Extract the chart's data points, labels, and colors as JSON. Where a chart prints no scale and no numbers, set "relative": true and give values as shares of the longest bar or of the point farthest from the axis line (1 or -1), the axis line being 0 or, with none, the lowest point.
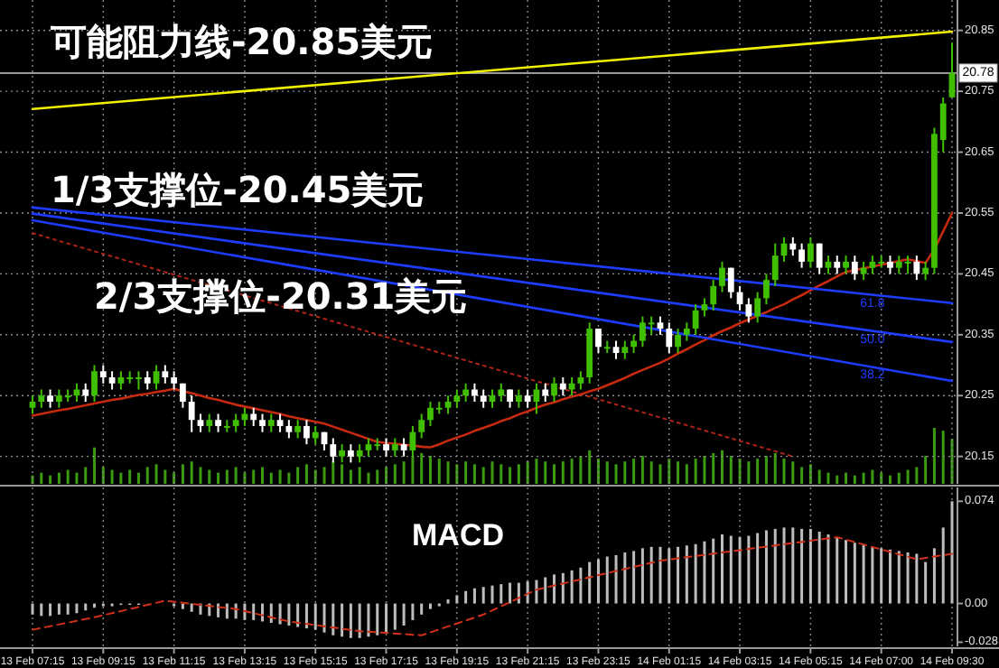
{
  "chart_data": [
    {
      "type": "candlestick",
      "categories": [
        null,
        null,
        null,
        null,
        null,
        null,
        null,
        null,
        null,
        null,
        null,
        null,
        null,
        null,
        null,
        null,
        null,
        null,
        null,
        null,
        null,
        null,
        null,
        null,
        null,
        null,
        null,
        null,
        null,
        null,
        null,
        null,
        null,
        null,
        null,
        null,
        null,
        null,
        null,
        null,
        null,
        null,
        null,
        null,
        null,
        null,
        null,
        null,
        null,
        null,
        null,
        null,
        null,
        null,
        null,
        null,
        null,
        null,
        null,
        null,
        null,
        null,
        null,
        null,
        null,
        null,
        null,
        null,
        null,
        null,
        null,
        null,
        null,
        null,
        null,
        null,
        null,
        null,
        null,
        null,
        null,
        null,
        null,
        null,
        null,
        null,
        null,
        null,
        null,
        null,
        null,
        null,
        null,
        null,
        null,
        null,
        null,
        null,
        null,
        null,
        null,
        null,
        null,
        null,
        null
      ],
      "ohlc": [
        [
          20.23,
          20.25,
          20.22,
          20.24
        ],
        [
          20.24,
          20.26,
          20.23,
          20.25
        ],
        [
          20.25,
          20.26,
          20.23,
          20.24
        ],
        [
          20.24,
          20.26,
          20.23,
          20.25
        ],
        [
          20.25,
          20.26,
          20.24,
          20.25
        ],
        [
          20.25,
          20.27,
          20.24,
          20.26
        ],
        [
          20.26,
          20.27,
          20.24,
          20.25
        ],
        [
          20.25,
          20.3,
          20.24,
          20.29
        ],
        [
          20.29,
          20.3,
          20.27,
          20.28
        ],
        [
          20.28,
          20.29,
          20.26,
          20.27
        ],
        [
          20.27,
          20.29,
          20.26,
          20.28
        ],
        [
          20.28,
          20.29,
          20.27,
          20.28
        ],
        [
          20.28,
          20.29,
          20.26,
          20.28
        ],
        [
          20.28,
          20.29,
          20.26,
          20.27
        ],
        [
          20.27,
          20.3,
          20.26,
          20.29
        ],
        [
          20.29,
          20.3,
          20.27,
          20.28
        ],
        [
          20.28,
          20.29,
          20.26,
          20.27
        ],
        [
          20.27,
          20.27,
          20.23,
          20.24
        ],
        [
          20.24,
          20.25,
          20.19,
          20.21
        ],
        [
          20.21,
          20.22,
          20.19,
          20.2
        ],
        [
          20.2,
          20.22,
          20.19,
          20.21
        ],
        [
          20.21,
          20.22,
          20.19,
          20.2
        ],
        [
          20.2,
          20.21,
          20.19,
          20.2
        ],
        [
          20.2,
          20.22,
          20.19,
          20.21
        ],
        [
          20.21,
          20.23,
          20.2,
          20.22
        ],
        [
          20.22,
          20.23,
          20.2,
          20.21
        ],
        [
          20.21,
          20.22,
          20.19,
          20.2
        ],
        [
          20.2,
          20.22,
          20.19,
          20.21
        ],
        [
          20.21,
          20.22,
          20.19,
          20.2
        ],
        [
          20.2,
          20.21,
          20.18,
          20.19
        ],
        [
          20.19,
          20.21,
          20.18,
          20.2
        ],
        [
          20.2,
          20.21,
          20.17,
          20.18
        ],
        [
          20.18,
          20.2,
          20.17,
          20.19
        ],
        [
          20.19,
          20.19,
          20.16,
          20.17
        ],
        [
          20.17,
          20.18,
          20.14,
          20.15
        ],
        [
          20.15,
          20.17,
          20.14,
          20.16
        ],
        [
          20.16,
          20.17,
          20.14,
          20.15
        ],
        [
          20.15,
          20.17,
          20.14,
          20.16
        ],
        [
          20.16,
          20.18,
          20.15,
          20.17
        ],
        [
          20.17,
          20.18,
          20.16,
          20.17
        ],
        [
          20.17,
          20.18,
          20.15,
          20.16
        ],
        [
          20.16,
          20.18,
          20.15,
          20.17
        ],
        [
          20.17,
          20.18,
          20.15,
          20.16
        ],
        [
          20.16,
          20.2,
          20.15,
          20.19
        ],
        [
          20.19,
          20.22,
          20.18,
          20.21
        ],
        [
          20.21,
          20.24,
          20.2,
          20.23
        ],
        [
          20.23,
          20.24,
          20.22,
          20.23
        ],
        [
          20.23,
          20.25,
          20.22,
          20.24
        ],
        [
          20.24,
          20.26,
          20.23,
          20.25
        ],
        [
          20.25,
          20.27,
          20.24,
          20.26
        ],
        [
          20.26,
          20.27,
          20.24,
          20.25
        ],
        [
          20.25,
          20.26,
          20.23,
          20.24
        ],
        [
          20.24,
          20.26,
          20.23,
          20.25
        ],
        [
          20.25,
          20.27,
          20.24,
          20.26
        ],
        [
          20.26,
          20.26,
          20.23,
          20.24
        ],
        [
          20.24,
          20.26,
          20.23,
          20.25
        ],
        [
          20.25,
          20.26,
          20.23,
          20.24
        ],
        [
          20.24,
          20.27,
          20.22,
          20.26
        ],
        [
          20.26,
          20.27,
          20.24,
          20.25
        ],
        [
          20.25,
          20.28,
          20.24,
          20.27
        ],
        [
          20.27,
          20.28,
          20.25,
          20.26
        ],
        [
          20.26,
          20.28,
          20.25,
          20.27
        ],
        [
          20.27,
          20.29,
          20.26,
          20.28
        ],
        [
          20.28,
          20.37,
          20.27,
          20.36
        ],
        [
          20.36,
          20.36,
          20.32,
          20.33
        ],
        [
          20.33,
          20.34,
          20.32,
          20.33
        ],
        [
          20.33,
          20.34,
          20.31,
          20.32
        ],
        [
          20.32,
          20.34,
          20.31,
          20.33
        ],
        [
          20.33,
          20.35,
          20.32,
          20.34
        ],
        [
          20.34,
          20.38,
          20.33,
          20.37
        ],
        [
          20.37,
          20.38,
          20.35,
          20.37
        ],
        [
          20.37,
          20.38,
          20.35,
          20.36
        ],
        [
          20.36,
          20.37,
          20.32,
          20.33
        ],
        [
          20.33,
          20.36,
          20.32,
          20.35
        ],
        [
          20.35,
          20.37,
          20.34,
          20.36
        ],
        [
          20.36,
          20.4,
          20.35,
          20.39
        ],
        [
          20.39,
          20.41,
          20.38,
          20.4
        ],
        [
          20.4,
          20.44,
          20.39,
          20.43
        ],
        [
          20.43,
          20.47,
          20.42,
          20.46
        ],
        [
          20.46,
          20.46,
          20.41,
          20.42
        ],
        [
          20.42,
          20.43,
          20.39,
          20.4
        ],
        [
          20.4,
          20.41,
          20.37,
          20.38
        ],
        [
          20.38,
          20.42,
          20.37,
          20.41
        ],
        [
          20.41,
          20.45,
          20.4,
          20.44
        ],
        [
          20.44,
          20.5,
          20.43,
          20.48
        ],
        [
          20.48,
          20.51,
          20.47,
          20.5
        ],
        [
          20.5,
          20.51,
          20.48,
          20.49
        ],
        [
          20.49,
          20.5,
          20.46,
          20.47
        ],
        [
          20.47,
          20.51,
          20.46,
          20.5
        ],
        [
          20.5,
          20.5,
          20.45,
          20.46
        ],
        [
          20.46,
          20.48,
          20.45,
          20.47
        ],
        [
          20.47,
          20.48,
          20.45,
          20.46
        ],
        [
          20.46,
          20.48,
          20.45,
          20.47
        ],
        [
          20.47,
          20.48,
          20.44,
          20.45
        ],
        [
          20.45,
          20.47,
          20.44,
          20.46
        ],
        [
          20.46,
          20.48,
          20.45,
          20.47
        ],
        [
          20.47,
          20.48,
          20.46,
          20.47
        ],
        [
          20.47,
          20.48,
          20.45,
          20.46
        ],
        [
          20.46,
          20.48,
          20.45,
          20.47
        ],
        [
          20.47,
          20.48,
          20.45,
          20.47
        ],
        [
          20.47,
          20.48,
          20.44,
          20.45
        ],
        [
          20.45,
          20.47,
          20.44,
          20.46
        ],
        [
          20.46,
          20.69,
          20.45,
          20.68
        ],
        [
          20.67,
          20.74,
          20.65,
          20.73
        ],
        [
          20.74,
          20.83,
          20.74,
          20.78
        ]
      ],
      "colors": [
        "#3fbf00",
        "#3fbf00",
        "#ffffff",
        "#3fbf00",
        "#3fbf00",
        "#3fbf00",
        "#ffffff",
        "#3fbf00",
        "#ffffff",
        "#ffffff",
        "#3fbf00",
        "#3fbf00",
        "#3fbf00",
        "#ffffff",
        "#3fbf00",
        "#ffffff",
        "#ffffff",
        "#ffffff",
        "#ffffff",
        "#ffffff",
        "#3fbf00",
        "#ffffff",
        "#3fbf00",
        "#3fbf00",
        "#3fbf00",
        "#ffffff",
        "#ffffff",
        "#3fbf00",
        "#ffffff",
        "#ffffff",
        "#3fbf00",
        "#ffffff",
        "#3fbf00",
        "#ffffff",
        "#ffffff",
        "#3fbf00",
        "#ffffff",
        "#3fbf00",
        "#3fbf00",
        "#3fbf00",
        "#ffffff",
        "#3fbf00",
        "#ffffff",
        "#3fbf00",
        "#3fbf00",
        "#3fbf00",
        "#3fbf00",
        "#3fbf00",
        "#3fbf00",
        "#3fbf00",
        "#ffffff",
        "#ffffff",
        "#3fbf00",
        "#3fbf00",
        "#ffffff",
        "#3fbf00",
        "#ffffff",
        "#3fbf00",
        "#ffffff",
        "#3fbf00",
        "#ffffff",
        "#3fbf00",
        "#3fbf00",
        "#3fbf00",
        "#ffffff",
        "#3fbf00",
        "#ffffff",
        "#3fbf00",
        "#3fbf00",
        "#3fbf00",
        "#3fbf00",
        "#ffffff",
        "#ffffff",
        "#3fbf00",
        "#3fbf00",
        "#3fbf00",
        "#3fbf00",
        "#3fbf00",
        "#3fbf00",
        "#ffffff",
        "#ffffff",
        "#ffffff",
        "#3fbf00",
        "#3fbf00",
        "#3fbf00",
        "#3fbf00",
        "#ffffff",
        "#ffffff",
        "#3fbf00",
        "#ffffff",
        "#3fbf00",
        "#ffffff",
        "#3fbf00",
        "#ffffff",
        "#3fbf00",
        "#3fbf00",
        "#3fbf00",
        "#ffffff",
        "#3fbf00",
        "#3fbf00",
        "#ffffff",
        "#3fbf00",
        "#3fbf00",
        "#3fbf00",
        "#3fbf00"
      ],
      "series": [
        {
          "type": "line",
          "color": "#b02418",
          "line_style": "dotted",
          "values": [
            20.517,
            null,
            null,
            null,
            null,
            null,
            null,
            null,
            null,
            null,
            null,
            null,
            null,
            null,
            null,
            null,
            null,
            null,
            null,
            null,
            null,
            null,
            null,
            null,
            null,
            null,
            null,
            null,
            null,
            null,
            null,
            null,
            null,
            null,
            null,
            null,
            null,
            null,
            null,
            null,
            null,
            null,
            null,
            null,
            null,
            null,
            null,
            null,
            null,
            null,
            null,
            null,
            null,
            null,
            null,
            null,
            null,
            null,
            null,
            null,
            null,
            null,
            null,
            null,
            null,
            null,
            null,
            null,
            null,
            null,
            null,
            null,
            null,
            null,
            null,
            null,
            null,
            null,
            null,
            null,
            null,
            null,
            null,
            null,
            null,
            null,
            20.15,
            null,
            null,
            null,
            null,
            null,
            null,
            null,
            null,
            null,
            null,
            null,
            null,
            null,
            null,
            null,
            null,
            null,
            null
          ]
        },
        {
          "type": "line",
          "color": "#c82a10",
          "values": [
            20.217,
            20.22,
            20.223,
            20.226,
            20.228,
            20.231,
            20.234,
            20.237,
            20.24,
            20.243,
            20.245,
            20.248,
            20.251,
            20.253,
            20.256,
            20.258,
            20.261,
            20.257,
            20.254,
            20.25,
            20.246,
            20.243,
            20.239,
            20.235,
            20.232,
            20.229,
            20.226,
            20.223,
            20.22,
            20.216,
            20.213,
            20.21,
            20.207,
            20.204,
            20.199,
            20.194,
            20.189,
            20.184,
            20.179,
            20.174,
            20.172,
            20.171,
            20.169,
            20.168,
            20.166,
            20.165,
            20.17,
            20.176,
            20.181,
            20.186,
            20.192,
            20.197,
            20.202,
            20.208,
            20.213,
            20.219,
            20.224,
            20.23,
            20.235,
            20.239,
            20.244,
            20.248,
            20.252,
            20.257,
            20.261,
            20.267,
            20.273,
            20.279,
            20.286,
            20.292,
            20.298,
            20.304,
            20.311,
            20.319,
            20.326,
            20.334,
            20.341,
            20.349,
            20.356,
            20.362,
            20.369,
            20.375,
            20.381,
            20.387,
            20.394,
            20.4,
            20.408,
            20.415,
            20.423,
            20.431,
            20.438,
            20.446,
            20.453,
            20.456,
            20.459,
            20.462,
            20.465,
            20.468,
            20.471,
            20.474,
            20.471,
            20.468,
            20.49,
            20.52,
            20.55
          ]
        },
        {
          "type": "line",
          "color": "#f0f000",
          "values": [
            20.721,
            null,
            null,
            null,
            null,
            null,
            null,
            null,
            null,
            null,
            null,
            null,
            null,
            null,
            null,
            null,
            null,
            null,
            null,
            null,
            null,
            null,
            null,
            null,
            null,
            null,
            null,
            null,
            null,
            null,
            null,
            null,
            null,
            null,
            null,
            null,
            null,
            null,
            null,
            null,
            null,
            null,
            null,
            null,
            null,
            null,
            null,
            null,
            null,
            null,
            null,
            null,
            null,
            null,
            null,
            null,
            null,
            null,
            null,
            null,
            null,
            null,
            null,
            null,
            null,
            null,
            null,
            null,
            null,
            null,
            null,
            null,
            null,
            null,
            null,
            null,
            null,
            null,
            null,
            null,
            null,
            null,
            null,
            null,
            null,
            null,
            null,
            null,
            null,
            null,
            null,
            null,
            null,
            null,
            null,
            null,
            null,
            null,
            null,
            null,
            null,
            null,
            null,
            null,
            20.848
          ]
        },
        {
          "type": "line",
          "name": "61.8",
          "color": "#1e3cff",
          "values": [
            20.559,
            null,
            null,
            null,
            null,
            null,
            null,
            null,
            null,
            null,
            null,
            null,
            null,
            null,
            null,
            null,
            null,
            null,
            null,
            null,
            null,
            null,
            null,
            null,
            null,
            null,
            null,
            null,
            null,
            null,
            null,
            null,
            null,
            null,
            null,
            null,
            null,
            null,
            null,
            null,
            null,
            null,
            null,
            null,
            null,
            null,
            null,
            null,
            null,
            null,
            null,
            null,
            null,
            null,
            null,
            null,
            null,
            null,
            null,
            null,
            null,
            null,
            null,
            null,
            null,
            null,
            null,
            null,
            null,
            null,
            null,
            null,
            null,
            null,
            null,
            null,
            null,
            null,
            null,
            null,
            null,
            null,
            null,
            null,
            null,
            null,
            null,
            null,
            null,
            null,
            null,
            null,
            null,
            null,
            null,
            null,
            null,
            null,
            null,
            null,
            null,
            null,
            null,
            null,
            20.402
          ]
        },
        {
          "type": "line",
          "name": "50.0",
          "color": "#1e3cff",
          "values": [
            20.549,
            null,
            null,
            null,
            null,
            null,
            null,
            null,
            null,
            null,
            null,
            null,
            null,
            null,
            null,
            null,
            null,
            null,
            null,
            null,
            null,
            null,
            null,
            null,
            null,
            null,
            null,
            null,
            null,
            null,
            null,
            null,
            null,
            null,
            null,
            null,
            null,
            null,
            null,
            null,
            null,
            null,
            null,
            null,
            null,
            null,
            null,
            null,
            null,
            null,
            null,
            null,
            null,
            null,
            null,
            null,
            null,
            null,
            null,
            null,
            null,
            null,
            null,
            null,
            null,
            null,
            null,
            null,
            null,
            null,
            null,
            null,
            null,
            null,
            null,
            null,
            null,
            null,
            null,
            null,
            null,
            null,
            null,
            null,
            null,
            null,
            null,
            null,
            null,
            null,
            null,
            null,
            null,
            null,
            null,
            null,
            null,
            null,
            null,
            null,
            null,
            null,
            null,
            null,
            20.338
          ]
        },
        {
          "type": "line",
          "name": "38.2",
          "color": "#1e3cff",
          "values": [
            20.538,
            null,
            null,
            null,
            null,
            null,
            null,
            null,
            null,
            null,
            null,
            null,
            null,
            null,
            null,
            null,
            null,
            null,
            null,
            null,
            null,
            null,
            null,
            null,
            null,
            null,
            null,
            null,
            null,
            null,
            null,
            null,
            null,
            null,
            null,
            null,
            null,
            null,
            null,
            null,
            null,
            null,
            null,
            null,
            null,
            null,
            null,
            null,
            null,
            null,
            null,
            null,
            null,
            null,
            null,
            null,
            null,
            null,
            null,
            null,
            null,
            null,
            null,
            null,
            null,
            null,
            null,
            null,
            null,
            null,
            null,
            null,
            null,
            null,
            null,
            null,
            null,
            null,
            null,
            null,
            null,
            null,
            null,
            null,
            null,
            null,
            null,
            null,
            null,
            null,
            null,
            null,
            null,
            null,
            null,
            null,
            null,
            null,
            null,
            null,
            null,
            null,
            null,
            null,
            20.274
          ]
        }
      ],
      "ylim": [
        20.105,
        20.9
      ],
      "yticks": [
        20.15,
        20.25,
        20.35,
        20.45,
        20.55,
        20.65,
        20.75,
        20.85
      ],
      "ref_lines": [
        {
          "axis": "y",
          "value": 20.78,
          "label": "20.78",
          "color": "#9a9a9a"
        }
      ],
      "annotations": [
        "可能阻力线-20.85美元",
        "1/3支撑位-20.45美元",
        "2/3支撑位-20.31美元"
      ],
      "grid": true,
      "tick_labels": "y"
    },
    {
      "type": "bar",
      "relative": true,
      "categories": [
        null,
        null,
        null,
        null,
        null,
        null,
        null,
        null,
        null,
        null,
        null,
        null,
        null,
        null,
        null,
        null,
        null,
        null,
        null,
        null,
        null,
        null,
        null,
        null,
        null,
        null,
        null,
        null,
        null,
        null,
        null,
        null,
        null,
        null,
        null,
        null,
        null,
        null,
        null,
        null,
        null,
        null,
        null,
        null,
        null,
        null,
        null,
        null,
        null,
        null,
        null,
        null,
        null,
        null,
        null,
        null,
        null,
        null,
        null,
        null,
        null,
        null,
        null,
        null,
        null,
        null,
        null,
        null,
        null,
        null,
        null,
        null,
        null,
        null,
        null,
        null,
        null,
        null,
        null,
        null,
        null,
        null,
        null,
        null,
        null,
        null,
        null,
        null,
        null,
        null,
        null,
        null,
        null,
        null,
        null,
        null,
        null,
        null,
        null,
        null,
        null,
        null,
        null,
        null,
        null
      ],
      "values": [
        0.15,
        0.2,
        0.15,
        0.2,
        0.25,
        0.2,
        0.3,
        0.65,
        0.3,
        0.25,
        0.2,
        0.25,
        0.2,
        0.3,
        0.35,
        0.25,
        0.2,
        0.35,
        0.4,
        0.3,
        0.25,
        0.2,
        0.25,
        0.3,
        0.2,
        0.25,
        0.3,
        0.2,
        0.25,
        0.2,
        0.3,
        0.35,
        0.25,
        0.3,
        0.4,
        0.35,
        0.25,
        0.3,
        0.2,
        0.25,
        0.3,
        0.35,
        0.4,
        0.5,
        0.55,
        0.5,
        0.45,
        0.4,
        0.35,
        0.4,
        0.35,
        0.3,
        0.4,
        0.35,
        0.3,
        0.35,
        0.4,
        0.45,
        0.4,
        0.35,
        0.4,
        0.45,
        0.5,
        0.6,
        0.45,
        0.4,
        0.35,
        0.4,
        0.45,
        0.5,
        0.4,
        0.35,
        0.45,
        0.4,
        0.35,
        0.45,
        0.5,
        0.55,
        0.6,
        0.5,
        0.45,
        0.4,
        0.45,
        0.5,
        0.55,
        0.45,
        0.4,
        0.3,
        0.35,
        0.25,
        0.2,
        0.15,
        0.2,
        0.15,
        0.2,
        0.25,
        0.2,
        0.15,
        0.2,
        0.25,
        0.3,
        0.5,
        1,
        0.95,
        0.8
      ],
      "color": "#3a9a10",
      "tick_labels": false
    },
    {
      "type": "bar",
      "title": "MACD",
      "categories": [
        "13 Feb 07:15",
        null,
        null,
        null,
        null,
        null,
        null,
        null,
        "13 Feb 09:15",
        null,
        null,
        null,
        null,
        null,
        null,
        null,
        "13 Feb 11:15",
        null,
        null,
        null,
        null,
        null,
        null,
        null,
        "13 Feb 13:15",
        null,
        null,
        null,
        null,
        null,
        null,
        null,
        "13 Feb 15:15",
        null,
        null,
        null,
        null,
        null,
        null,
        null,
        "13 Feb 17:15",
        null,
        null,
        null,
        null,
        null,
        null,
        null,
        "13 Feb 19:15",
        null,
        null,
        null,
        null,
        null,
        null,
        null,
        "13 Feb 21:15",
        null,
        null,
        null,
        null,
        null,
        null,
        null,
        "13 Feb 23:15",
        null,
        null,
        null,
        null,
        null,
        null,
        null,
        "14 Feb 01:15",
        null,
        null,
        null,
        null,
        null,
        null,
        null,
        "14 Feb 03:15",
        null,
        null,
        null,
        null,
        null,
        null,
        null,
        "14 Feb 05:15",
        null,
        null,
        null,
        null,
        null,
        null,
        null,
        "14 Feb 07:00",
        null,
        null,
        null,
        null,
        null,
        null,
        null,
        "14 Feb 09:30"
      ],
      "series": [
        {
          "color": "#bdbdbd",
          "values": [
            -0.008,
            -0.009,
            -0.009,
            -0.008,
            -0.008,
            -0.007,
            -0.005,
            -0.003,
            -0.002,
            -0.002,
            -0.001,
            -0.001,
            -0.001,
            0,
            null,
            0,
            -0.002,
            -0.004,
            -0.006,
            -0.008,
            -0.009,
            -0.01,
            -0.011,
            -0.011,
            -0.012,
            -0.012,
            -0.013,
            -0.014,
            -0.015,
            -0.016,
            -0.017,
            -0.018,
            -0.019,
            -0.021,
            -0.023,
            -0.024,
            -0.025,
            -0.025,
            -0.024,
            -0.023,
            -0.021,
            -0.019,
            -0.016,
            -0.012,
            -0.008,
            -0.004,
            -0.002,
            0.003,
            0.006,
            0.009,
            0.011,
            0.012,
            0.013,
            0.014,
            0.015,
            0.015,
            0.016,
            0.017,
            0.019,
            0.021,
            0.022,
            0.024,
            0.026,
            0.03,
            0.032,
            0.034,
            0.035,
            0.037,
            0.038,
            0.04,
            0.041,
            0.041,
            0.04,
            0.041,
            0.042,
            0.043,
            0.045,
            0.047,
            0.05,
            0.049,
            0.048,
            0.049,
            0.051,
            0.053,
            0.054,
            0.055,
            0.055,
            0.054,
            0.054,
            0.052,
            0.05,
            0.048,
            0.046,
            0.044,
            0.043,
            0.041,
            0.04,
            0.039,
            0.038,
            0.037,
            0.036,
            0.03,
            0.04,
            0.055,
            0.074
          ]
        },
        {
          "type": "line",
          "color": "#d0301a",
          "line_style": "dashed",
          "values": [
            -0.019,
            null,
            null,
            null,
            null,
            null,
            null,
            -0.01,
            null,
            null,
            null,
            null,
            null,
            null,
            null,
            0.002,
            null,
            null,
            null,
            null,
            null,
            null,
            null,
            -0.004,
            null,
            null,
            null,
            null,
            null,
            -0.013,
            null,
            null,
            null,
            null,
            null,
            null,
            null,
            -0.02,
            null,
            null,
            null,
            null,
            null,
            null,
            -0.023,
            null,
            null,
            null,
            null,
            null,
            null,
            -0.008,
            null,
            null,
            null,
            null,
            null,
            0.01,
            null,
            null,
            null,
            null,
            null,
            null,
            null,
            null,
            null,
            null,
            null,
            null,
            null,
            0.031,
            null,
            null,
            null,
            null,
            null,
            null,
            null,
            null,
            null,
            null,
            null,
            null,
            null,
            null,
            null,
            null,
            null,
            null,
            null,
            0.048,
            null,
            null,
            null,
            null,
            null,
            null,
            null,
            null,
            0.032,
            null,
            null,
            null,
            0.036
          ]
        }
      ],
      "ylim": [
        -0.031,
        0.084
      ],
      "yticks": [
        -0.028,
        {
          "value": 0,
          "label": "0.00"
        },
        0.074
      ],
      "grid": "x"
    }
  ]
}
